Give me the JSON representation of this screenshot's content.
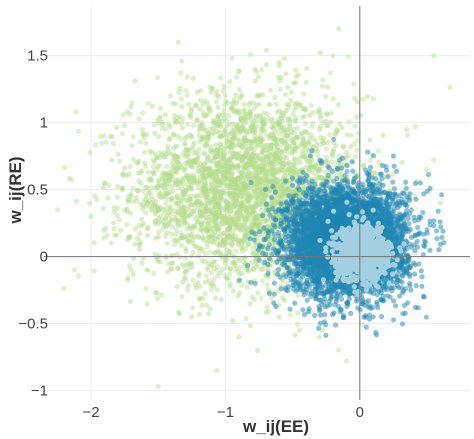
{
  "chart_data": {
    "type": "scatter",
    "title": "",
    "xlabel": "w_ij(EE)",
    "ylabel": "w_ij(RE)",
    "xlim": [
      -2.35,
      0.82
    ],
    "ylim": [
      -1.07,
      1.87
    ],
    "grid": true,
    "zero_lines": true,
    "xticks": [
      {
        "value": -2,
        "label": "−2"
      },
      {
        "value": -1,
        "label": "−1"
      },
      {
        "value": 0,
        "label": "0"
      }
    ],
    "yticks": [
      {
        "value": 1.5,
        "label": "1.5"
      },
      {
        "value": 1,
        "label": "1"
      },
      {
        "value": 0.5,
        "label": "0.5"
      },
      {
        "value": 0,
        "label": "0"
      },
      {
        "value": -0.5,
        "label": "−0.5"
      },
      {
        "value": -1,
        "label": "−1"
      }
    ],
    "series": [
      {
        "color": "#b4dc8c",
        "opacity": 0.45,
        "values": [
          [
            -1.35,
            1.6
          ],
          [
            -0.2,
            1.5
          ],
          [
            -0.6,
            1.45
          ],
          [
            -0.9,
            1.38
          ],
          [
            -0.4,
            1.3
          ],
          [
            -1.1,
            1.25
          ],
          [
            -0.75,
            1.2
          ],
          [
            -1.75,
            0.98
          ],
          [
            -1.6,
            0.7
          ],
          [
            -1.9,
            0.55
          ],
          [
            -2.25,
            0.35
          ],
          [
            -1.85,
            0.1
          ],
          [
            -1.5,
            0.25
          ],
          [
            -1.3,
            0.85
          ],
          [
            -1.0,
            0.95
          ],
          [
            -0.85,
            0.75
          ],
          [
            -0.6,
            1.0
          ],
          [
            -0.3,
            1.1
          ],
          [
            0.1,
            1.18
          ],
          [
            0.35,
            0.95
          ],
          [
            0.55,
            0.72
          ],
          [
            0.6,
            0.4
          ],
          [
            -1.2,
            0.55
          ],
          [
            -0.95,
            0.4
          ],
          [
            -0.7,
            0.55
          ],
          [
            -1.4,
            -0.05
          ],
          [
            -1.1,
            -0.2
          ],
          [
            -0.8,
            -0.3
          ],
          [
            -0.6,
            -0.45
          ],
          [
            -0.3,
            -0.6
          ],
          [
            -0.1,
            -0.78
          ],
          [
            0.55,
            1.5
          ],
          [
            -0.5,
            0.8
          ],
          [
            -1.55,
            0.45
          ],
          [
            -1.0,
            0.1
          ],
          [
            -1.25,
            -0.45
          ],
          [
            -0.9,
            -0.6
          ],
          [
            -0.45,
            -0.55
          ],
          [
            -2.0,
            0.3
          ],
          [
            -1.7,
            -0.1
          ]
        ],
        "cluster": {
          "center": [
            -0.85,
            0.5
          ],
          "spread": [
            0.42,
            0.35
          ],
          "count": 3200
        }
      },
      {
        "color": "#1f86b4",
        "opacity": 0.5,
        "values": [
          [
            0.25,
            0.75
          ],
          [
            0.45,
            0.55
          ],
          [
            -0.45,
            0.55
          ],
          [
            -0.6,
            0.1
          ],
          [
            0.38,
            -0.25
          ],
          [
            0.1,
            -0.45
          ],
          [
            -0.3,
            -0.4
          ],
          [
            -0.15,
            0.72
          ],
          [
            0.5,
            0.2
          ],
          [
            -0.55,
            -0.15
          ]
        ],
        "cluster": {
          "center": [
            -0.1,
            0.12
          ],
          "spread": [
            0.22,
            0.2
          ],
          "count": 5000
        }
      },
      {
        "color": "#a3cfe0",
        "opacity": 1,
        "values": [],
        "cluster": {
          "center": [
            0.02,
            0.02
          ],
          "spread": [
            0.1,
            0.1
          ],
          "count": 900
        }
      }
    ]
  }
}
